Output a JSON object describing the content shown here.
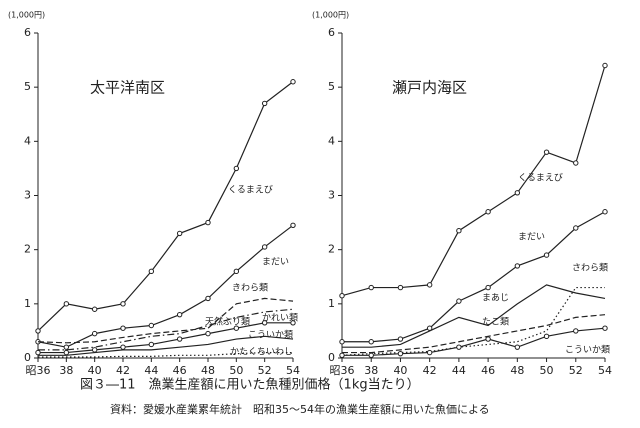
{
  "chart_data": [
    {
      "type": "line",
      "title": "太平洋南区",
      "y_unit": "(1,000円)",
      "categories": [
        "昭36",
        "38",
        "40",
        "42",
        "44",
        "46",
        "48",
        "50",
        "52",
        "54"
      ],
      "ylim": [
        0,
        6
      ],
      "yticks": [
        0,
        1,
        2,
        3,
        4,
        5,
        6
      ],
      "series": [
        {
          "name": "くるまえび",
          "color": "#222",
          "style": "solid",
          "marker": "circle",
          "values": [
            0.5,
            1.0,
            0.9,
            1.0,
            1.6,
            2.3,
            2.5,
            3.5,
            4.7,
            5.1
          ]
        },
        {
          "name": "まだい",
          "color": "#222",
          "style": "solid",
          "marker": "circle",
          "values": [
            0.3,
            0.2,
            0.45,
            0.55,
            0.6,
            0.8,
            1.1,
            1.6,
            2.05,
            2.45
          ]
        },
        {
          "name": "きわら類",
          "color": "#222",
          "style": "dashed",
          "marker": "none",
          "values": [
            0.3,
            0.28,
            0.3,
            0.38,
            0.45,
            0.5,
            0.55,
            1.0,
            1.1,
            1.05
          ]
        },
        {
          "name": "天然ぶり類",
          "color": "#222",
          "style": "dashdot",
          "marker": "none",
          "values": [
            0.15,
            0.15,
            0.2,
            0.3,
            0.4,
            0.45,
            0.6,
            0.75,
            0.85,
            0.9
          ]
        },
        {
          "name": "かれい類",
          "color": "#222",
          "style": "solid",
          "marker": "circle",
          "values": [
            0.1,
            0.1,
            0.15,
            0.2,
            0.25,
            0.35,
            0.45,
            0.55,
            0.65,
            0.65
          ]
        },
        {
          "name": "こういか類",
          "color": "#222",
          "style": "solid",
          "marker": "none",
          "values": [
            0.05,
            0.05,
            0.1,
            0.15,
            0.15,
            0.2,
            0.25,
            0.35,
            0.4,
            0.35
          ]
        },
        {
          "name": "かたくちいわし",
          "color": "#222",
          "style": "dotted",
          "marker": "none",
          "values": [
            0.02,
            0.02,
            0.02,
            0.03,
            0.03,
            0.05,
            0.05,
            0.08,
            0.1,
            0.1
          ]
        }
      ]
    },
    {
      "type": "line",
      "title": "瀬戸内海区",
      "y_unit": "(1,000円)",
      "categories": [
        "昭36",
        "38",
        "40",
        "42",
        "44",
        "46",
        "48",
        "50",
        "52",
        "54"
      ],
      "ylim": [
        0,
        6
      ],
      "yticks": [
        0,
        1,
        2,
        3,
        4,
        5,
        6
      ],
      "series": [
        {
          "name": "くるまえび",
          "color": "#222",
          "style": "solid",
          "marker": "circle",
          "values": [
            1.15,
            1.3,
            1.3,
            1.35,
            2.35,
            2.7,
            3.05,
            3.8,
            3.6,
            5.4
          ]
        },
        {
          "name": "まだい",
          "color": "#222",
          "style": "solid",
          "marker": "circle",
          "values": [
            0.3,
            0.3,
            0.35,
            0.55,
            1.05,
            1.3,
            1.7,
            1.9,
            2.4,
            2.7
          ]
        },
        {
          "name": "さわら類",
          "color": "#222",
          "style": "solid",
          "marker": "none",
          "values": [
            0.2,
            0.2,
            0.25,
            0.5,
            0.75,
            0.6,
            1.0,
            1.35,
            1.2,
            1.1
          ]
        },
        {
          "name": "まあじ",
          "color": "#222",
          "style": "dotted",
          "marker": "none",
          "values": [
            0.05,
            0.08,
            0.1,
            0.12,
            0.2,
            0.25,
            0.3,
            0.5,
            1.3,
            1.3
          ]
        },
        {
          "name": "たこ類",
          "color": "#222",
          "style": "dashed",
          "marker": "none",
          "values": [
            0.1,
            0.1,
            0.15,
            0.2,
            0.3,
            0.4,
            0.5,
            0.6,
            0.75,
            0.8
          ]
        },
        {
          "name": "こういか類",
          "color": "#222",
          "style": "solid",
          "marker": "circle",
          "values": [
            0.05,
            0.05,
            0.08,
            0.1,
            0.2,
            0.35,
            0.2,
            0.4,
            0.5,
            0.55
          ]
        }
      ]
    }
  ],
  "caption": "図３―11　漁業生産額に用いた魚種別価格（1kg当たり）",
  "source": "資料：愛媛水産業累年統計　昭和35～54年の漁業生産額に用いた魚価による"
}
